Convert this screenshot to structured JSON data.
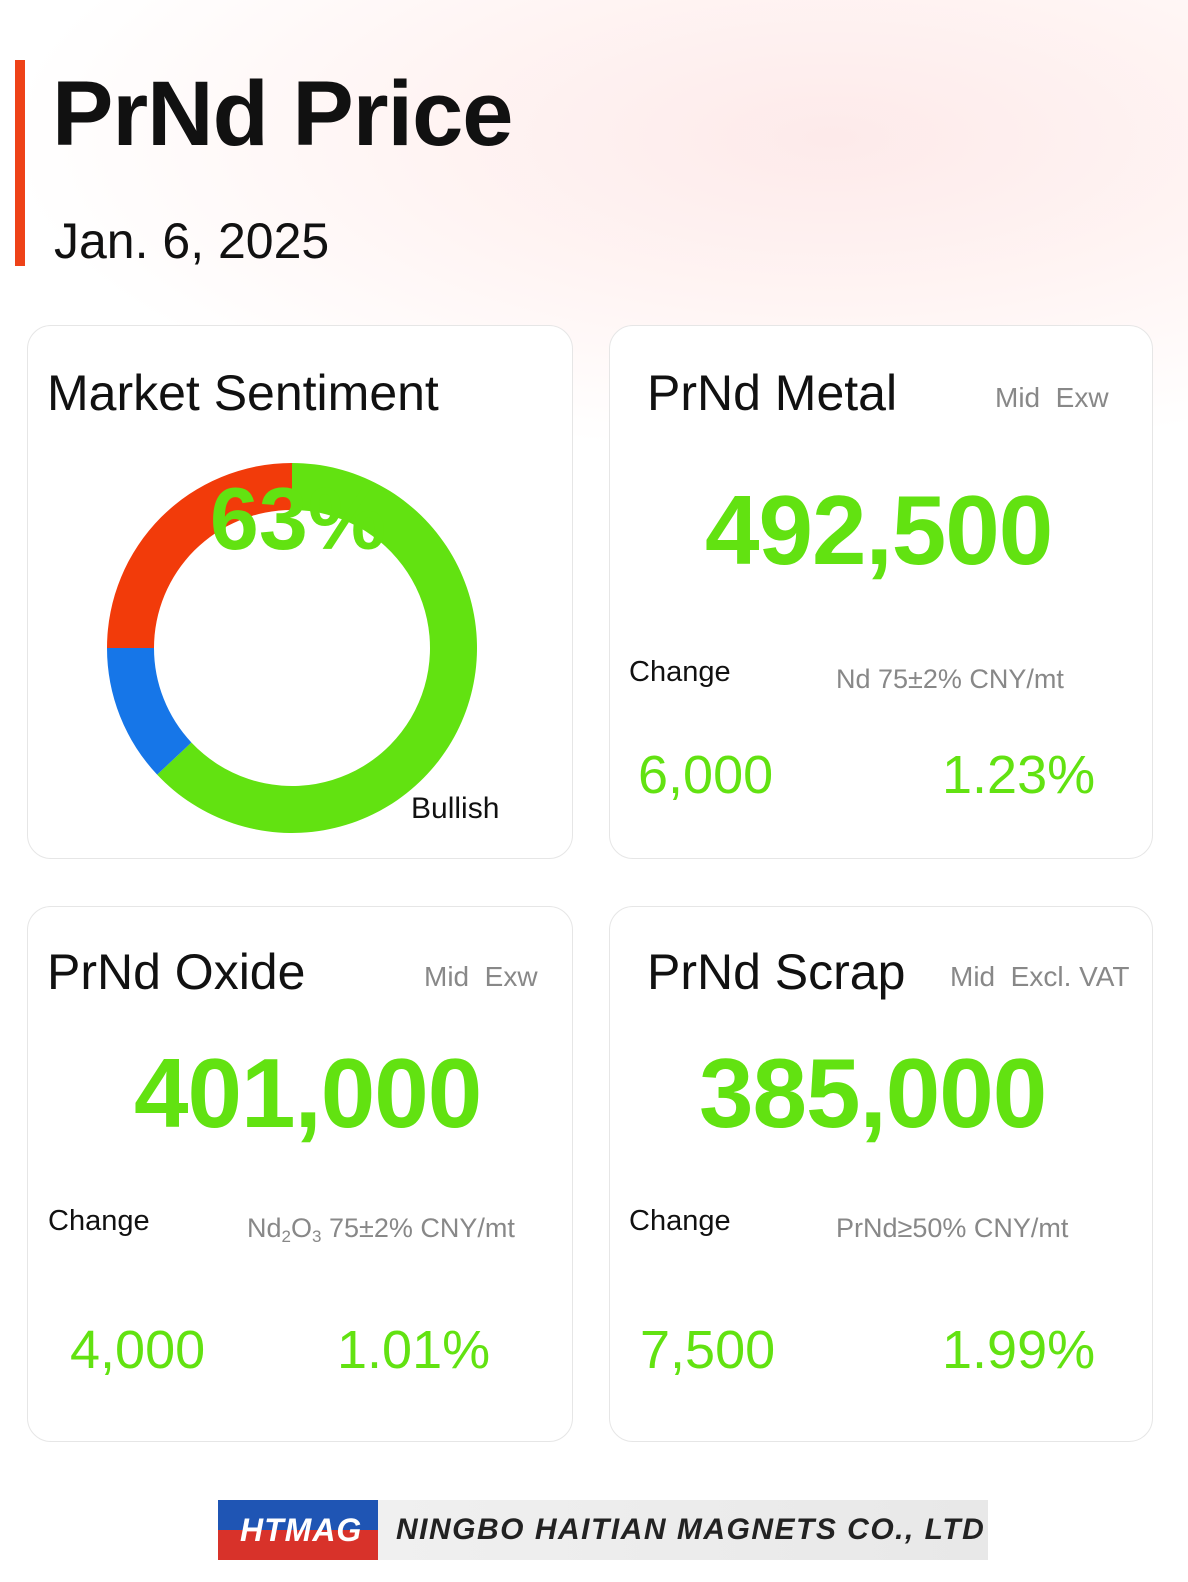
{
  "header": {
    "title": "PrNd Price",
    "date": "Jan. 6, 2025",
    "accent_color": "#ee4218"
  },
  "sentiment": {
    "title": "Market Sentiment",
    "percent_label": "63%",
    "label": "Bullish",
    "chart_data": {
      "type": "pie",
      "style": "donut",
      "slices": [
        {
          "color": "#62e211",
          "value": 63
        },
        {
          "color": "#1676e8",
          "value": 12
        },
        {
          "color": "#f23b0a",
          "value": 25
        }
      ]
    }
  },
  "metal": {
    "title": "PrNd Metal",
    "sub": "Mid  Exw",
    "price": "492,500",
    "change_label": "Change",
    "unit": "Nd 75±2% CNY/mt",
    "change_value": "6,000",
    "change_pct": "1.23%"
  },
  "oxide": {
    "title": "PrNd Oxide",
    "sub": "Mid  Exw",
    "price": "401,000",
    "change_label": "Change",
    "unit_nd": "Nd",
    "unit_sub1": "2",
    "unit_o": "O",
    "unit_sub2": "3",
    "unit_rest": " 75±2% CNY/mt",
    "change_value": "4,000",
    "change_pct": "1.01%"
  },
  "scrap": {
    "title": "PrNd Scrap",
    "sub": "Mid  Excl. VAT",
    "price": "385,000",
    "change_label": "Change",
    "unit": "PrNd≥50% CNY/mt",
    "change_value": "7,500",
    "change_pct": "1.99%"
  },
  "footer": {
    "logo_text": "HTMAG",
    "company": "NINGBO HAITIAN MAGNETS CO., LTD"
  },
  "colors": {
    "price_green": "#62e211",
    "muted_gray": "#888888"
  }
}
